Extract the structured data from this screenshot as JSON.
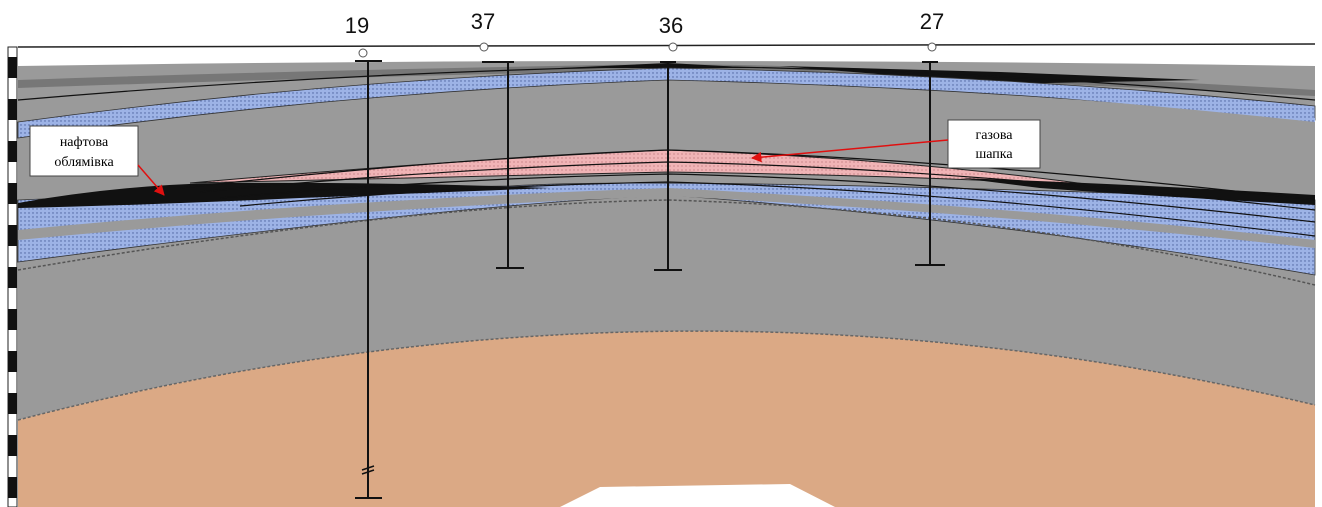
{
  "wells": [
    {
      "label": "19"
    },
    {
      "label": "37"
    },
    {
      "label": "36"
    },
    {
      "label": "27"
    }
  ],
  "annotations": [
    {
      "lines": [
        "нафтова",
        "облямівка"
      ]
    },
    {
      "lines": [
        "газова",
        "шапка"
      ]
    }
  ]
}
